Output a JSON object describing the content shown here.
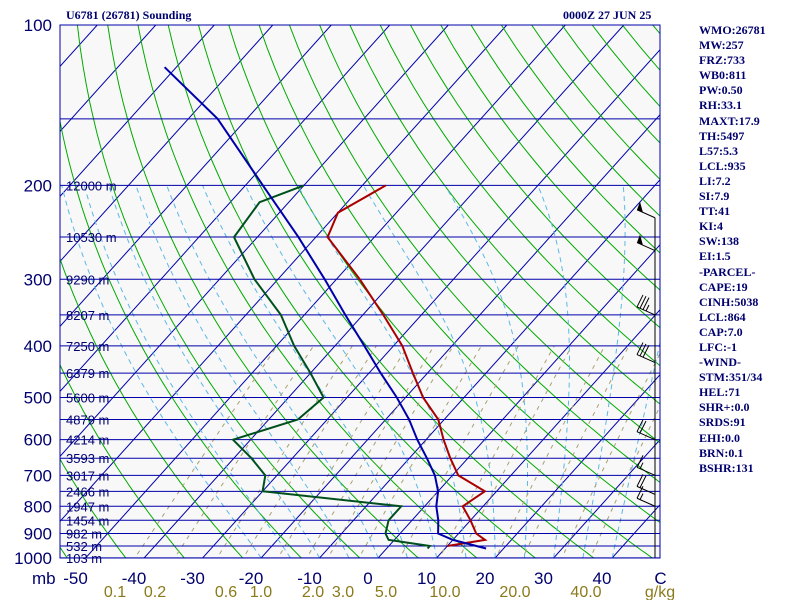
{
  "header": {
    "station": "U6781 (26781) Sounding",
    "time": "0000Z 27 JUN 25"
  },
  "sidebar": [
    "WMO:26781",
    "MW:257",
    "FRZ:733",
    "WB0:811",
    "PW:0.50",
    "RH:33.1",
    "MAXT:17.9",
    "TH:5497",
    "L57:5.3",
    "LCL:935",
    "LI:7.2",
    "SI:7.9",
    "TT:41",
    "KI:4",
    "SW:138",
    "EI:1.5",
    "-PARCEL-",
    "CAPE:19",
    "CINH:5038",
    "LCL:864",
    "CAP:7.0",
    "LFC:-1",
    "-WIND-",
    "STM:351/34",
    "HEL:71",
    "SHR+:0.0",
    "SRDS:91",
    "EHI:0.0",
    "BRN:0.1",
    "BSHR:131"
  ],
  "chart_data": {
    "type": "line",
    "title": "U6781 (26781) Sounding",
    "subtitle": "0000Z 27 JUN 25",
    "xlabel": "",
    "ylabel": "mb",
    "x_unit_mixing": "g/kg",
    "xlim": [
      -50,
      50
    ],
    "ylim": [
      1050,
      100
    ],
    "y_scale": "log",
    "grid": true,
    "pressure_ticks": [
      100,
      200,
      300,
      400,
      500,
      600,
      700,
      800,
      900,
      1000
    ],
    "temp_ticks": [
      {
        "v": -50,
        "label": "-50"
      },
      {
        "v": -40,
        "label": "-40"
      },
      {
        "v": -30,
        "label": "-30"
      },
      {
        "v": -20,
        "label": "-20"
      },
      {
        "v": -10,
        "label": "-10"
      },
      {
        "v": 0,
        "label": "0"
      },
      {
        "v": 10,
        "label": "10"
      },
      {
        "v": 20,
        "label": "20"
      },
      {
        "v": 30,
        "label": "30"
      },
      {
        "v": 40,
        "label": "40"
      },
      {
        "v": 50,
        "label": "C"
      }
    ],
    "mixing_ratio_labels": [
      "0.1",
      "0.2",
      "0.6",
      "1.0",
      "2.0",
      "3.0",
      "5.0",
      "10.0",
      "20.0",
      "40.0"
    ],
    "mixing_ratio_unit": "g/kg",
    "heights": [
      {
        "p": 200,
        "label": "12000 m"
      },
      {
        "p": 250,
        "label": "10530 m"
      },
      {
        "p": 300,
        "label": "9290 m"
      },
      {
        "p": 350,
        "label": "8207 m"
      },
      {
        "p": 400,
        "label": "7250 m"
      },
      {
        "p": 450,
        "label": "6379 m"
      },
      {
        "p": 500,
        "label": "5600 m"
      },
      {
        "p": 550,
        "label": "4879 m"
      },
      {
        "p": 600,
        "label": "4214 m"
      },
      {
        "p": 650,
        "label": "3593 m"
      },
      {
        "p": 700,
        "label": "3017 m"
      },
      {
        "p": 750,
        "label": "2466 m"
      },
      {
        "p": 800,
        "label": "1947 m"
      },
      {
        "p": 850,
        "label": "1454 m"
      },
      {
        "p": 900,
        "label": "982 m"
      },
      {
        "p": 950,
        "label": "532 m"
      },
      {
        "p": 1000,
        "label": "103 m"
      }
    ],
    "series": [
      {
        "id": "temperature",
        "color": "#aa0000",
        "points": [
          [
            950,
            10
          ],
          [
            925,
            15.5
          ],
          [
            900,
            13
          ],
          [
            850,
            10
          ],
          [
            800,
            6.5
          ],
          [
            750,
            8
          ],
          [
            700,
            1
          ],
          [
            650,
            -3
          ],
          [
            600,
            -7
          ],
          [
            550,
            -11
          ],
          [
            500,
            -17
          ],
          [
            450,
            -22.5
          ],
          [
            400,
            -28.5
          ],
          [
            350,
            -36.5
          ],
          [
            300,
            -46
          ],
          [
            250,
            -58
          ],
          [
            225,
            -60
          ],
          [
            200,
            -56
          ]
        ]
      },
      {
        "id": "dewpoint",
        "color": "#00501e",
        "points": [
          [
            960,
            7
          ],
          [
            950,
            7
          ],
          [
            925,
            -1
          ],
          [
            900,
            -2.5
          ],
          [
            850,
            -4
          ],
          [
            800,
            -4
          ],
          [
            750,
            -30
          ],
          [
            700,
            -32
          ],
          [
            650,
            -37
          ],
          [
            600,
            -43
          ],
          [
            550,
            -35
          ],
          [
            500,
            -34
          ],
          [
            450,
            -40
          ],
          [
            400,
            -47
          ],
          [
            350,
            -54
          ],
          [
            300,
            -64
          ],
          [
            250,
            -74
          ],
          [
            215,
            -75
          ],
          [
            200,
            -70
          ]
        ]
      },
      {
        "id": "parcel",
        "color": "#0000aa",
        "points": [
          [
            960,
            17
          ],
          [
            925,
            10
          ],
          [
            900,
            6.5
          ],
          [
            850,
            4.5
          ],
          [
            800,
            2
          ],
          [
            750,
            0
          ],
          [
            700,
            -3
          ],
          [
            650,
            -7
          ],
          [
            600,
            -11.5
          ],
          [
            550,
            -16
          ],
          [
            500,
            -21.5
          ],
          [
            450,
            -28
          ],
          [
            400,
            -35
          ],
          [
            350,
            -43
          ],
          [
            300,
            -52
          ],
          [
            250,
            -63
          ],
          [
            200,
            -77
          ],
          [
            150,
            -95
          ],
          [
            120,
            -112
          ]
        ]
      }
    ],
    "wind_barbs": [
      {
        "p": 230,
        "spd": 50
      },
      {
        "p": 265,
        "spd": 50
      },
      {
        "p": 350,
        "spd": 35
      },
      {
        "p": 430,
        "spd": 30
      },
      {
        "p": 600,
        "spd": 20
      },
      {
        "p": 700,
        "spd": 15
      },
      {
        "p": 760,
        "spd": 20
      },
      {
        "p": 800,
        "spd": 15
      }
    ]
  }
}
